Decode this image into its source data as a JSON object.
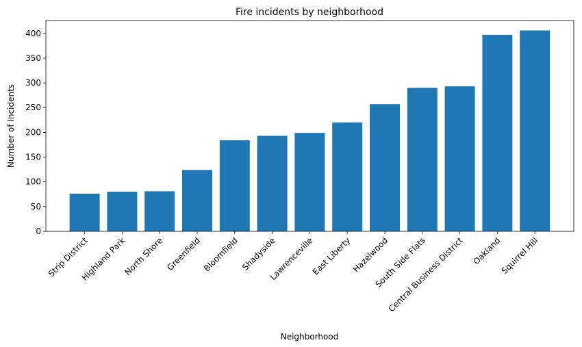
{
  "chart_data": {
    "type": "bar",
    "title": "Fire incidents by neighborhood",
    "xlabel": "Neighborhood",
    "ylabel": "Number of Incidents",
    "categories": [
      "Strip District",
      "Highland Park",
      "North Shore",
      "Greenfield",
      "Bloomfield",
      "Shadyside",
      "Lawrenceville",
      "East Liberty",
      "Hazelwood",
      "South Side Flats",
      "Central Business District",
      "Oakland",
      "Squirrel Hill"
    ],
    "values": [
      76,
      80,
      81,
      124,
      184,
      193,
      199,
      220,
      257,
      290,
      293,
      397,
      406
    ],
    "yticks": [
      0,
      50,
      100,
      150,
      200,
      250,
      300,
      350,
      400
    ],
    "ylim": [
      0,
      426
    ],
    "grid": false,
    "bar_color": "#1f77b4"
  }
}
